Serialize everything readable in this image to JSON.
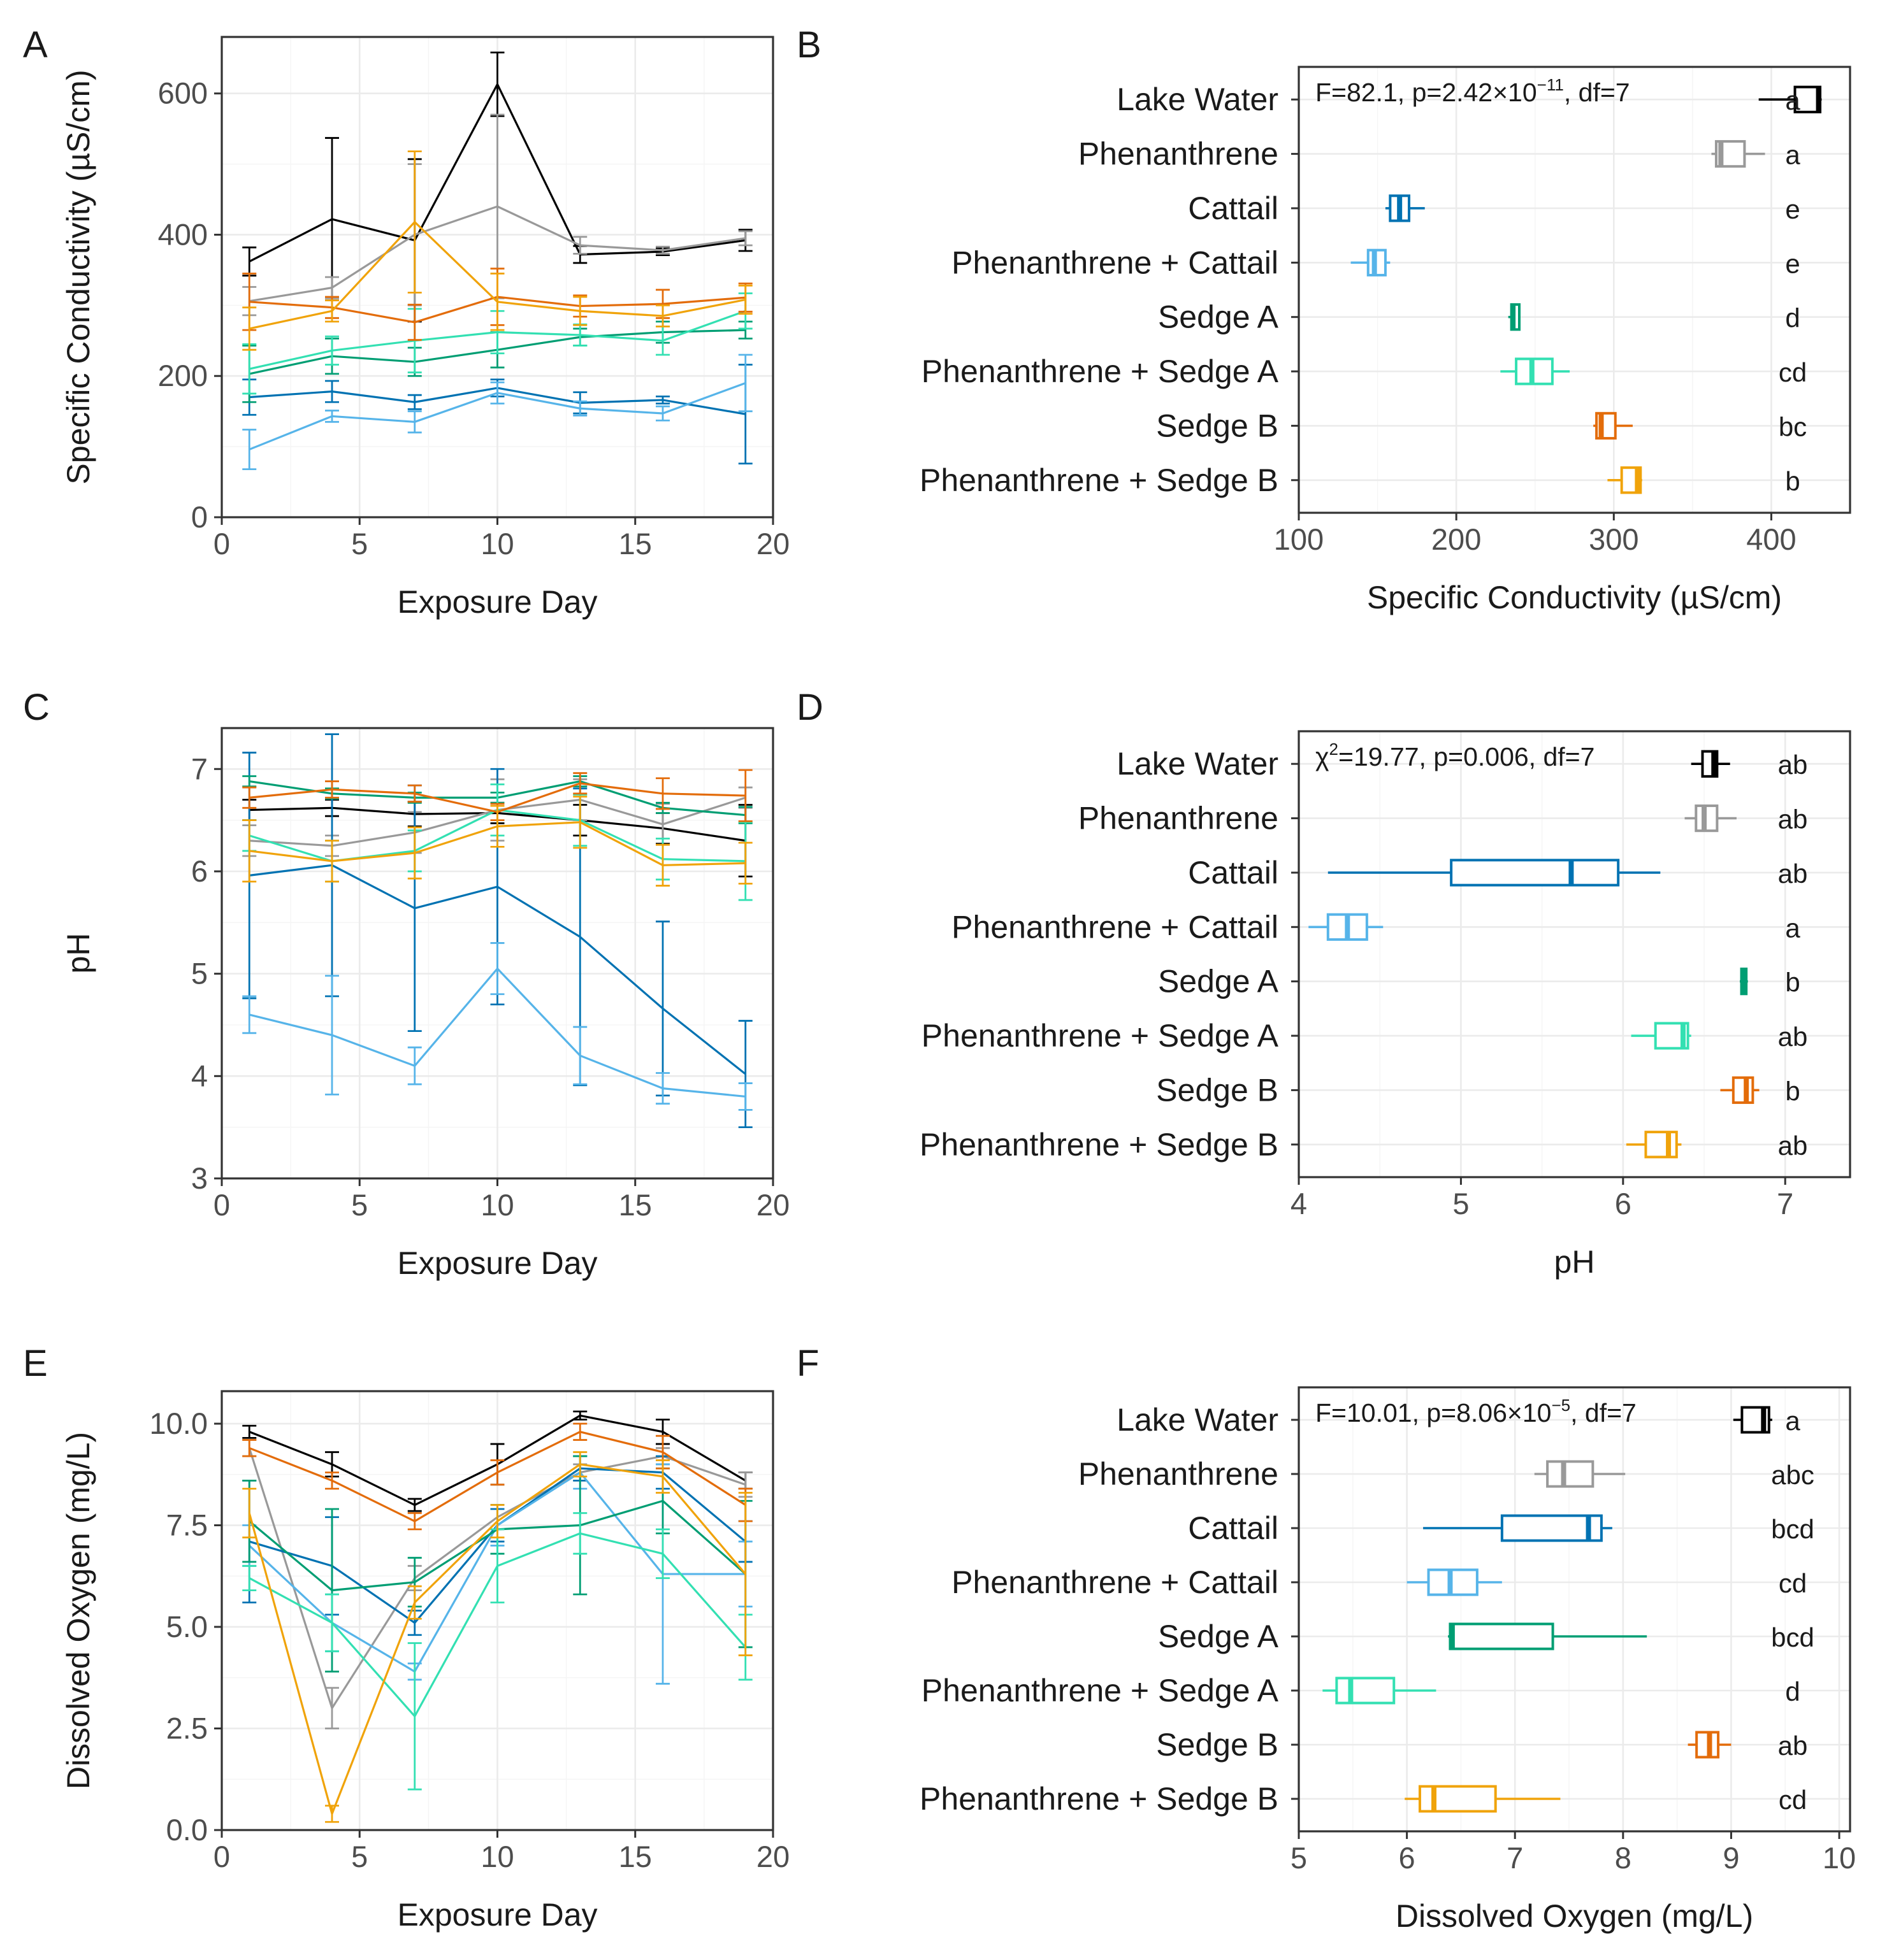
{
  "treatments": [
    {
      "name": "Lake Water",
      "color": "#000000"
    },
    {
      "name": "Phenanthrene",
      "color": "#999999"
    },
    {
      "name": "Cattail",
      "color": "#0072B2"
    },
    {
      "name": "Phenanthrene + Cattail",
      "color": "#56B4E9"
    },
    {
      "name": "Sedge A",
      "color": "#009E73"
    },
    {
      "name": "Phenanthrene + Sedge A",
      "color": "#33E0B2"
    },
    {
      "name": "Sedge B",
      "color": "#E36C0A"
    },
    {
      "name": "Phenanthrene + Sedge B",
      "color": "#F0A30A"
    }
  ],
  "chart_data": [
    {
      "id": "A",
      "panel_label": "A",
      "type": "line",
      "xlabel": "Exposure Day",
      "ylabel": "Specific Conductivity (µS/cm)",
      "xlim": [
        0,
        20
      ],
      "ylim": [
        0,
        680
      ],
      "xticks": [
        0,
        5,
        10,
        15,
        20
      ],
      "yticks": [
        0,
        200,
        400,
        600
      ],
      "x": [
        1,
        4,
        7,
        10,
        13,
        16,
        19
      ],
      "series": [
        {
          "name": "Lake Water",
          "values": [
            362,
            422,
            392,
            613,
            372,
            376,
            392
          ],
          "errors": [
            20,
            115,
            115,
            45,
            12,
            5,
            15
          ]
        },
        {
          "name": "Phenanthrene",
          "values": [
            306,
            325,
            400,
            440,
            385,
            378,
            395
          ],
          "errors": [
            20,
            15,
            100,
            130,
            12,
            5,
            10
          ]
        },
        {
          "name": "Cattail",
          "values": [
            170,
            178,
            163,
            183,
            162,
            166,
            146
          ],
          "errors": [
            25,
            15,
            10,
            12,
            15,
            5,
            70
          ]
        },
        {
          "name": "Phenanthrene + Cattail",
          "values": [
            96,
            143,
            135,
            176,
            154,
            147,
            190
          ],
          "errors": [
            28,
            8,
            15,
            15,
            10,
            10,
            40
          ]
        },
        {
          "name": "Sedge A",
          "values": [
            203,
            228,
            220,
            237,
            255,
            262,
            265
          ],
          "errors": [
            40,
            25,
            20,
            25,
            12,
            15,
            12
          ]
        },
        {
          "name": "Phenanthrene + Sedge A",
          "values": [
            210,
            236,
            250,
            262,
            258,
            250,
            292
          ],
          "errors": [
            35,
            20,
            45,
            30,
            15,
            20,
            25
          ]
        },
        {
          "name": "Sedge B",
          "values": [
            305,
            297,
            276,
            312,
            299,
            302,
            311
          ],
          "errors": [
            40,
            15,
            25,
            40,
            15,
            20,
            20
          ]
        },
        {
          "name": "Phenanthrene + Sedge B",
          "values": [
            267,
            292,
            418,
            305,
            292,
            285,
            308
          ],
          "errors": [
            30,
            15,
            100,
            40,
            20,
            15,
            20
          ]
        }
      ]
    },
    {
      "id": "B",
      "panel_label": "B",
      "type": "boxplot",
      "xlabel": "Specific Conductivity (µS/cm)",
      "xlim": [
        100,
        450
      ],
      "xticks": [
        100,
        200,
        300,
        400
      ],
      "stat_annotation": {
        "main": "F=82.1, p=2.42×10",
        "sup": "−11",
        "rest": ", df=7"
      },
      "boxes": [
        {
          "name": "Lake Water",
          "min": 392,
          "q1": 415,
          "median": 430,
          "q3": 431,
          "max": 432,
          "letter": "a"
        },
        {
          "name": "Phenanthrene",
          "min": 362,
          "q1": 365,
          "median": 368,
          "q3": 383,
          "max": 396,
          "letter": "a"
        },
        {
          "name": "Cattail",
          "min": 155,
          "q1": 158,
          "median": 164,
          "q3": 170,
          "max": 180,
          "letter": "e"
        },
        {
          "name": "Phenanthrene + Cattail",
          "min": 133,
          "q1": 144,
          "median": 148,
          "q3": 155,
          "max": 158,
          "letter": "e"
        },
        {
          "name": "Sedge A",
          "min": 233,
          "q1": 235,
          "median": 236,
          "q3": 240,
          "max": 240,
          "letter": "d"
        },
        {
          "name": "Phenanthrene + Sedge A",
          "min": 228,
          "q1": 238,
          "median": 248,
          "q3": 261,
          "max": 272,
          "letter": "cd"
        },
        {
          "name": "Sedge B",
          "min": 287,
          "q1": 289,
          "median": 292,
          "q3": 301,
          "max": 312,
          "letter": "bc"
        },
        {
          "name": "Phenanthrene + Sedge B",
          "min": 296,
          "q1": 305,
          "median": 315,
          "q3": 317,
          "max": 318,
          "letter": "b"
        }
      ]
    },
    {
      "id": "C",
      "panel_label": "C",
      "type": "line",
      "xlabel": "Exposure Day",
      "ylabel": "pH",
      "xlim": [
        0,
        20
      ],
      "ylim": [
        3,
        7.4
      ],
      "xticks": [
        0,
        5,
        10,
        15,
        20
      ],
      "yticks": [
        3,
        4,
        5,
        6,
        7
      ],
      "x": [
        1,
        4,
        7,
        10,
        13,
        16,
        19
      ],
      "series": [
        {
          "name": "Lake Water",
          "values": [
            6.6,
            6.62,
            6.56,
            6.57,
            6.5,
            6.42,
            6.3
          ],
          "errors": [
            0.1,
            0.08,
            0.12,
            0.1,
            0.15,
            0.15,
            0.35
          ]
        },
        {
          "name": "Phenanthrene",
          "values": [
            6.3,
            6.25,
            6.38,
            6.6,
            6.7,
            6.46,
            6.72
          ],
          "errors": [
            0.15,
            0.1,
            0.2,
            0.3,
            0.2,
            0.2,
            0.1
          ]
        },
        {
          "name": "Cattail",
          "values": [
            5.96,
            6.06,
            5.64,
            5.85,
            5.36,
            4.66,
            4.02
          ],
          "errors": [
            1.2,
            1.28,
            1.2,
            1.15,
            1.45,
            0.85,
            0.52
          ]
        },
        {
          "name": "Phenanthrene + Cattail",
          "values": [
            4.6,
            4.4,
            4.1,
            5.05,
            4.2,
            3.88,
            3.8
          ],
          "errors": [
            0.18,
            0.58,
            0.18,
            0.25,
            0.28,
            0.15,
            0.13
          ]
        },
        {
          "name": "Sedge A",
          "values": [
            6.88,
            6.76,
            6.72,
            6.72,
            6.88,
            6.62,
            6.55
          ],
          "errors": [
            0.05,
            0.05,
            0.05,
            0.05,
            0.05,
            0.05,
            0.08
          ]
        },
        {
          "name": "Phenanthrene + Sedge A",
          "values": [
            6.35,
            6.1,
            6.2,
            6.6,
            6.5,
            6.12,
            6.1
          ],
          "errors": [
            0.15,
            0.2,
            0.2,
            0.25,
            0.25,
            0.2,
            0.38
          ]
        },
        {
          "name": "Sedge B",
          "values": [
            6.72,
            6.8,
            6.76,
            6.58,
            6.86,
            6.76,
            6.74
          ],
          "errors": [
            0.1,
            0.08,
            0.08,
            0.08,
            0.1,
            0.15,
            0.25
          ]
        },
        {
          "name": "Phenanthrene + Sedge B",
          "values": [
            6.2,
            6.1,
            6.18,
            6.44,
            6.48,
            6.06,
            6.08
          ],
          "errors": [
            0.3,
            0.2,
            0.25,
            0.2,
            0.25,
            0.2,
            0.2
          ]
        }
      ]
    },
    {
      "id": "D",
      "panel_label": "D",
      "type": "boxplot",
      "xlabel": "pH",
      "xlim": [
        4,
        7.4
      ],
      "xticks": [
        4,
        5,
        6,
        7
      ],
      "stat_annotation": {
        "main": "χ",
        "sup": "2",
        "rest": "=19.77, p=0.006, df=7"
      },
      "boxes": [
        {
          "name": "Lake Water",
          "min": 6.42,
          "q1": 6.49,
          "median": 6.56,
          "q3": 6.58,
          "max": 6.66,
          "letter": "ab"
        },
        {
          "name": "Phenanthrene",
          "min": 6.38,
          "q1": 6.45,
          "median": 6.5,
          "q3": 6.58,
          "max": 6.7,
          "letter": "ab"
        },
        {
          "name": "Cattail",
          "min": 4.18,
          "q1": 4.94,
          "median": 5.68,
          "q3": 5.97,
          "max": 6.23,
          "letter": "ab"
        },
        {
          "name": "Phenanthrene + Cattail",
          "min": 4.06,
          "q1": 4.18,
          "median": 4.3,
          "q3": 4.42,
          "max": 4.52,
          "letter": "a"
        },
        {
          "name": "Sedge A",
          "min": 6.72,
          "q1": 6.73,
          "median": 6.75,
          "q3": 6.76,
          "max": 6.77,
          "letter": "b"
        },
        {
          "name": "Phenanthrene + Sedge A",
          "min": 6.05,
          "q1": 6.2,
          "median": 6.37,
          "q3": 6.4,
          "max": 6.42,
          "letter": "ab"
        },
        {
          "name": "Sedge B",
          "min": 6.6,
          "q1": 6.68,
          "median": 6.76,
          "q3": 6.8,
          "max": 6.84,
          "letter": "b"
        },
        {
          "name": "Phenanthrene + Sedge B",
          "min": 6.02,
          "q1": 6.14,
          "median": 6.28,
          "q3": 6.33,
          "max": 6.36,
          "letter": "ab"
        }
      ]
    },
    {
      "id": "E",
      "panel_label": "E",
      "type": "line",
      "xlabel": "Exposure Day",
      "ylabel": "Dissolved Oxygen (mg/L)",
      "xlim": [
        0,
        20
      ],
      "ylim": [
        0,
        10.8
      ],
      "xticks": [
        0,
        5,
        10,
        15,
        20
      ],
      "yticks": [
        0.0,
        2.5,
        5.0,
        7.5,
        10.0
      ],
      "x": [
        1,
        4,
        7,
        10,
        13,
        16,
        19
      ],
      "series": [
        {
          "name": "Lake Water",
          "values": [
            9.8,
            9.0,
            8.0,
            9.0,
            10.2,
            9.8,
            8.6
          ],
          "errors": [
            0.15,
            0.3,
            0.15,
            0.5,
            0.1,
            0.3,
            0.2
          ]
        },
        {
          "name": "Phenanthrene",
          "values": [
            9.4,
            3.0,
            6.2,
            7.7,
            8.8,
            9.2,
            8.5
          ],
          "errors": [
            0.2,
            0.5,
            0.3,
            0.3,
            0.2,
            0.2,
            0.3
          ]
        },
        {
          "name": "Cattail",
          "values": [
            7.1,
            6.5,
            5.1,
            7.5,
            8.9,
            8.8,
            7.1
          ],
          "errors": [
            1.5,
            1.2,
            0.3,
            0.4,
            0.3,
            0.4,
            0.5
          ]
        },
        {
          "name": "Phenanthrene + Cattail",
          "values": [
            7.0,
            5.1,
            3.9,
            7.5,
            8.8,
            6.3,
            6.3
          ],
          "errors": [
            0.5,
            0.7,
            0.2,
            0.5,
            0.4,
            2.7,
            0.8
          ]
        },
        {
          "name": "Sedge A",
          "values": [
            7.6,
            5.9,
            6.1,
            7.4,
            7.5,
            8.1,
            6.3
          ],
          "errors": [
            1.0,
            2.0,
            0.6,
            0.6,
            1.7,
            0.8,
            1.8
          ]
        },
        {
          "name": "Phenanthrene + Sedge A",
          "values": [
            6.2,
            5.1,
            2.8,
            6.5,
            7.3,
            6.8,
            4.5
          ],
          "errors": [
            0.3,
            0.7,
            1.8,
            0.9,
            0.5,
            0.6,
            0.8
          ]
        },
        {
          "name": "Sedge B",
          "values": [
            9.4,
            8.6,
            7.6,
            8.8,
            9.8,
            9.3,
            8.0
          ],
          "errors": [
            0.2,
            0.2,
            0.2,
            0.3,
            0.2,
            0.4,
            0.4
          ]
        },
        {
          "name": "Phenanthrene + Sedge B",
          "values": [
            7.8,
            0.4,
            5.6,
            7.6,
            9.0,
            8.7,
            6.3
          ],
          "errors": [
            0.6,
            0.2,
            0.4,
            0.4,
            0.3,
            0.4,
            2.0
          ]
        }
      ]
    },
    {
      "id": "F",
      "panel_label": "F",
      "type": "boxplot",
      "xlabel": "Dissolved Oxygen (mg/L)",
      "xlim": [
        5,
        10.1
      ],
      "xticks": [
        5,
        6,
        7,
        8,
        9,
        10
      ],
      "stat_annotation": {
        "main": "F=10.01, p=8.06×10",
        "sup": "−5",
        "rest": ", df=7"
      },
      "boxes": [
        {
          "name": "Lake Water",
          "min": 9.02,
          "q1": 9.1,
          "median": 9.3,
          "q3": 9.35,
          "max": 9.38,
          "letter": "a"
        },
        {
          "name": "Phenanthrene",
          "min": 7.18,
          "q1": 7.3,
          "median": 7.45,
          "q3": 7.72,
          "max": 8.02,
          "letter": "abc"
        },
        {
          "name": "Cattail",
          "min": 6.15,
          "q1": 6.88,
          "median": 7.68,
          "q3": 7.8,
          "max": 7.9,
          "letter": "bcd"
        },
        {
          "name": "Phenanthrene + Cattail",
          "min": 6.0,
          "q1": 6.2,
          "median": 6.4,
          "q3": 6.65,
          "max": 6.88,
          "letter": "cd"
        },
        {
          "name": "Sedge A",
          "min": 6.38,
          "q1": 6.4,
          "median": 6.42,
          "q3": 7.35,
          "max": 8.22,
          "letter": "bcd"
        },
        {
          "name": "Phenanthrene + Sedge A",
          "min": 5.22,
          "q1": 5.35,
          "median": 5.48,
          "q3": 5.88,
          "max": 6.27,
          "letter": "d"
        },
        {
          "name": "Sedge B",
          "min": 8.6,
          "q1": 8.68,
          "median": 8.8,
          "q3": 8.88,
          "max": 9.0,
          "letter": "ab"
        },
        {
          "name": "Phenanthrene + Sedge B",
          "min": 5.98,
          "q1": 6.12,
          "median": 6.25,
          "q3": 6.82,
          "max": 7.42,
          "letter": "cd"
        }
      ]
    }
  ]
}
